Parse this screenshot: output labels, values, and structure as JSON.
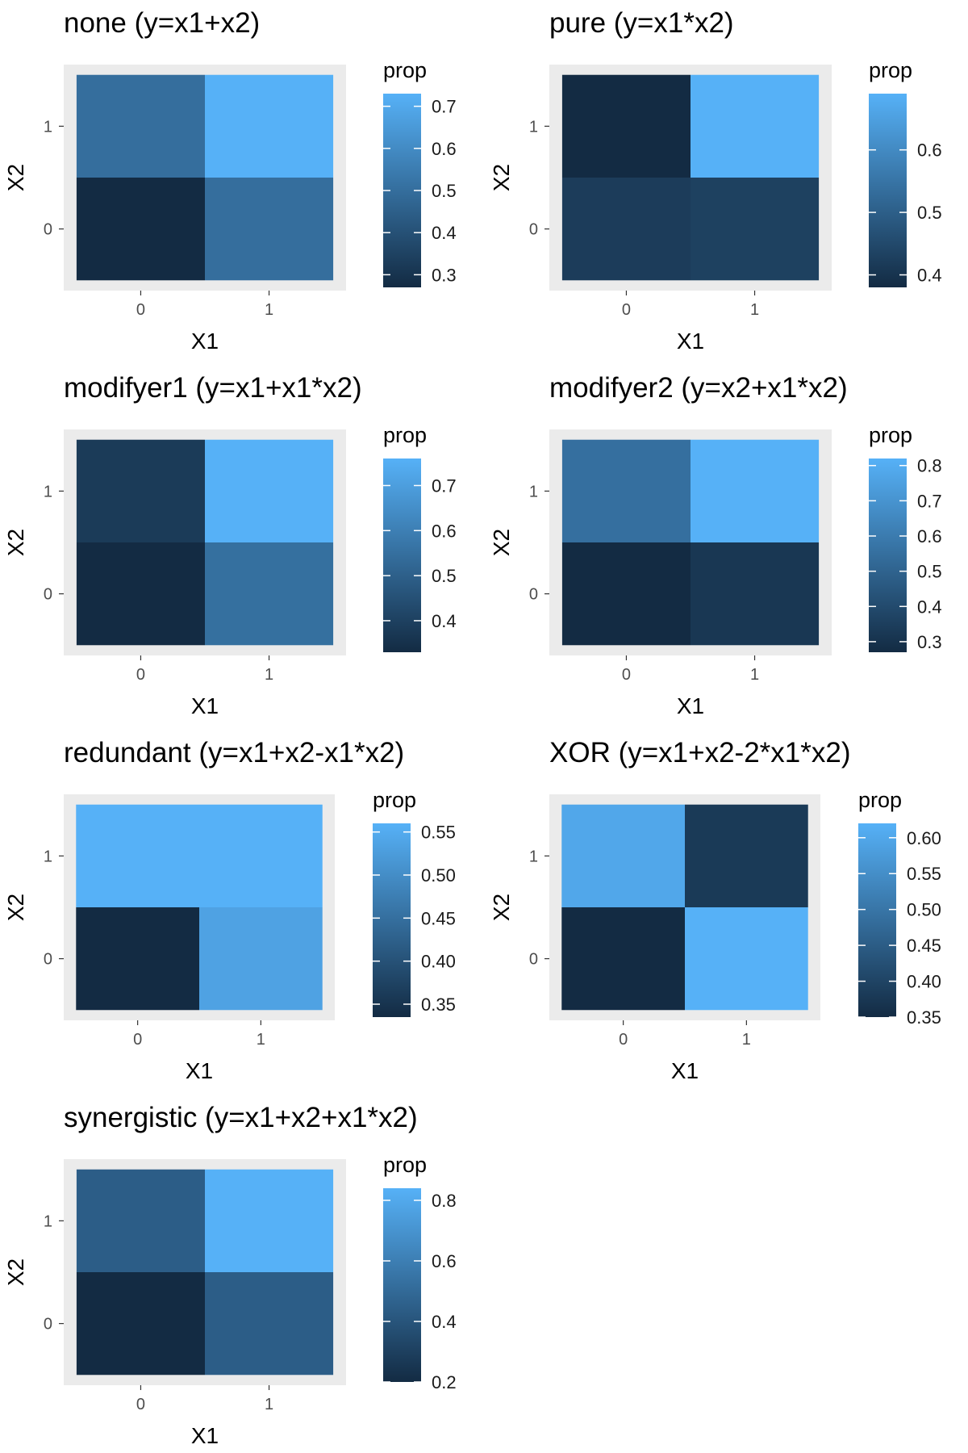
{
  "colors": {
    "low": "#132B43",
    "high": "#56B1F7",
    "panel_bg": "#EBEBEB"
  },
  "chart_data": [
    {
      "type": "heatmap",
      "title": "none (y=x1+x2)",
      "xlabel": "X1",
      "ylabel": "X2",
      "x_ticks": [
        "0",
        "1"
      ],
      "y_ticks": [
        "0",
        "1"
      ],
      "cells": [
        {
          "x": 0,
          "y": 0,
          "value": 0.27
        },
        {
          "x": 1,
          "y": 0,
          "value": 0.5
        },
        {
          "x": 0,
          "y": 1,
          "value": 0.5
        },
        {
          "x": 1,
          "y": 1,
          "value": 0.73
        }
      ],
      "legend": {
        "title": "prop",
        "range": [
          0.27,
          0.73
        ],
        "ticks": [
          0.3,
          0.4,
          0.5,
          0.6,
          0.7
        ],
        "tick_labels": [
          "0.3",
          "0.4",
          "0.5",
          "0.6",
          "0.7"
        ]
      }
    },
    {
      "type": "heatmap",
      "title": "pure (y=x1*x2)",
      "xlabel": "X1",
      "ylabel": "X2",
      "x_ticks": [
        "0",
        "1"
      ],
      "y_ticks": [
        "0",
        "1"
      ],
      "cells": [
        {
          "x": 0,
          "y": 0,
          "value": 0.42
        },
        {
          "x": 1,
          "y": 0,
          "value": 0.43
        },
        {
          "x": 0,
          "y": 1,
          "value": 0.38
        },
        {
          "x": 1,
          "y": 1,
          "value": 0.69
        }
      ],
      "legend": {
        "title": "prop",
        "range": [
          0.38,
          0.69
        ],
        "ticks": [
          0.4,
          0.5,
          0.6
        ],
        "tick_labels": [
          "0.4",
          "0.5",
          "0.6"
        ]
      }
    },
    {
      "type": "heatmap",
      "title": "modifyer1 (y=x1+x1*x2)",
      "xlabel": "X1",
      "ylabel": "X2",
      "x_ticks": [
        "0",
        "1"
      ],
      "y_ticks": [
        "0",
        "1"
      ],
      "cells": [
        {
          "x": 0,
          "y": 0,
          "value": 0.33
        },
        {
          "x": 1,
          "y": 0,
          "value": 0.55
        },
        {
          "x": 0,
          "y": 1,
          "value": 0.38
        },
        {
          "x": 1,
          "y": 1,
          "value": 0.76
        }
      ],
      "legend": {
        "title": "prop",
        "range": [
          0.33,
          0.76
        ],
        "ticks": [
          0.4,
          0.5,
          0.6,
          0.7
        ],
        "tick_labels": [
          "0.4",
          "0.5",
          "0.6",
          "0.7"
        ]
      }
    },
    {
      "type": "heatmap",
      "title": "modifyer2 (y=x2+x1*x2)",
      "xlabel": "X1",
      "ylabel": "X2",
      "x_ticks": [
        "0",
        "1"
      ],
      "y_ticks": [
        "0",
        "1"
      ],
      "cells": [
        {
          "x": 0,
          "y": 0,
          "value": 0.27
        },
        {
          "x": 1,
          "y": 0,
          "value": 0.32
        },
        {
          "x": 0,
          "y": 1,
          "value": 0.55
        },
        {
          "x": 1,
          "y": 1,
          "value": 0.82
        }
      ],
      "legend": {
        "title": "prop",
        "range": [
          0.27,
          0.82
        ],
        "ticks": [
          0.3,
          0.4,
          0.5,
          0.6,
          0.7,
          0.8
        ],
        "tick_labels": [
          "0.3",
          "0.4",
          "0.5",
          "0.6",
          "0.7",
          "0.8"
        ]
      }
    },
    {
      "type": "heatmap",
      "title": "redundant (y=x1+x2-x1*x2)",
      "xlabel": "X1",
      "ylabel": "X2",
      "x_ticks": [
        "0",
        "1"
      ],
      "y_ticks": [
        "0",
        "1"
      ],
      "cells": [
        {
          "x": 0,
          "y": 0,
          "value": 0.335
        },
        {
          "x": 1,
          "y": 0,
          "value": 0.535
        },
        {
          "x": 0,
          "y": 1,
          "value": 0.56
        },
        {
          "x": 1,
          "y": 1,
          "value": 0.56
        }
      ],
      "legend": {
        "title": "prop",
        "range": [
          0.335,
          0.56
        ],
        "ticks": [
          0.35,
          0.4,
          0.45,
          0.5,
          0.55
        ],
        "tick_labels": [
          "0.35",
          "0.40",
          "0.45",
          "0.50",
          "0.55"
        ]
      }
    },
    {
      "type": "heatmap",
      "title": "XOR (y=x1+x2-2*x1*x2)",
      "xlabel": "X1",
      "ylabel": "X2",
      "x_ticks": [
        "0",
        "1"
      ],
      "y_ticks": [
        "0",
        "1"
      ],
      "cells": [
        {
          "x": 0,
          "y": 0,
          "value": 0.35
        },
        {
          "x": 1,
          "y": 0,
          "value": 0.62
        },
        {
          "x": 0,
          "y": 1,
          "value": 0.6
        },
        {
          "x": 1,
          "y": 1,
          "value": 0.38
        }
      ],
      "legend": {
        "title": "prop",
        "range": [
          0.35,
          0.62
        ],
        "ticks": [
          0.35,
          0.4,
          0.45,
          0.5,
          0.55,
          0.6
        ],
        "tick_labels": [
          "0.35",
          "0.40",
          "0.45",
          "0.50",
          "0.55",
          "0.60"
        ]
      }
    },
    {
      "type": "heatmap",
      "title": "synergistic (y=x1+x2+x1*x2)",
      "xlabel": "X1",
      "ylabel": "X2",
      "x_ticks": [
        "0",
        "1"
      ],
      "y_ticks": [
        "0",
        "1"
      ],
      "cells": [
        {
          "x": 0,
          "y": 0,
          "value": 0.2
        },
        {
          "x": 1,
          "y": 0,
          "value": 0.44
        },
        {
          "x": 0,
          "y": 1,
          "value": 0.44
        },
        {
          "x": 1,
          "y": 1,
          "value": 0.84
        }
      ],
      "legend": {
        "title": "prop",
        "range": [
          0.2,
          0.84
        ],
        "ticks": [
          0.2,
          0.4,
          0.6,
          0.8
        ],
        "tick_labels": [
          "0.2",
          "0.4",
          "0.6",
          "0.8"
        ]
      }
    }
  ]
}
